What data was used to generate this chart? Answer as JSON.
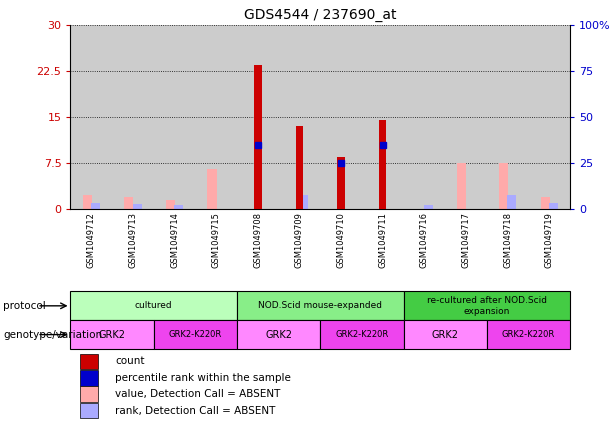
{
  "title": "GDS4544 / 237690_at",
  "samples": [
    "GSM1049712",
    "GSM1049713",
    "GSM1049714",
    "GSM1049715",
    "GSM1049708",
    "GSM1049709",
    "GSM1049710",
    "GSM1049711",
    "GSM1049716",
    "GSM1049717",
    "GSM1049718",
    "GSM1049719"
  ],
  "count_values": [
    0,
    0,
    0,
    0,
    23.5,
    13.5,
    8.5,
    14.5,
    0,
    0,
    0,
    0
  ],
  "percentile_rank_left": [
    0,
    0,
    0,
    0,
    10.5,
    0,
    7.5,
    10.5,
    0,
    0,
    0,
    0
  ],
  "absent_value": [
    2.2,
    2.0,
    1.5,
    6.5,
    0,
    0,
    0,
    0,
    0,
    7.5,
    7.5,
    2.0
  ],
  "absent_rank_left": [
    1.05,
    0.75,
    0.6,
    0,
    0,
    2.25,
    0,
    0,
    0.6,
    0,
    2.25,
    1.05
  ],
  "left_ylim": [
    0,
    30
  ],
  "right_ylim": [
    0,
    100
  ],
  "left_yticks": [
    0,
    7.5,
    15,
    22.5,
    30
  ],
  "right_yticks": [
    0,
    25,
    50,
    75,
    100
  ],
  "left_ytick_labels": [
    "0",
    "7.5",
    "15",
    "22.5",
    "30"
  ],
  "right_ytick_labels": [
    "0",
    "25",
    "50",
    "75",
    "100%"
  ],
  "protocols": [
    {
      "label": "cultured",
      "start": 0,
      "end": 4,
      "color": "#bbffbb"
    },
    {
      "label": "NOD.Scid mouse-expanded",
      "start": 4,
      "end": 8,
      "color": "#88ee88"
    },
    {
      "label": "re-cultured after NOD.Scid\nexpansion",
      "start": 8,
      "end": 12,
      "color": "#44cc44"
    }
  ],
  "genotypes": [
    {
      "label": "GRK2",
      "start": 0,
      "end": 2,
      "color": "#ff88ff"
    },
    {
      "label": "GRK2-K220R",
      "start": 2,
      "end": 4,
      "color": "#ee44ee"
    },
    {
      "label": "GRK2",
      "start": 4,
      "end": 6,
      "color": "#ff88ff"
    },
    {
      "label": "GRK2-K220R",
      "start": 6,
      "end": 8,
      "color": "#ee44ee"
    },
    {
      "label": "GRK2",
      "start": 8,
      "end": 10,
      "color": "#ff88ff"
    },
    {
      "label": "GRK2-K220R",
      "start": 10,
      "end": 12,
      "color": "#ee44ee"
    }
  ],
  "count_color": "#cc0000",
  "percentile_color": "#0000cc",
  "absent_value_color": "#ffaaaa",
  "absent_rank_color": "#aaaaff",
  "grid_color": "black",
  "left_axis_color": "#cc0000",
  "right_axis_color": "#0000cc",
  "bg_color": "#cccccc",
  "legend_items": [
    {
      "color": "#cc0000",
      "label": "count"
    },
    {
      "color": "#0000cc",
      "label": "percentile rank within the sample"
    },
    {
      "color": "#ffaaaa",
      "label": "value, Detection Call = ABSENT"
    },
    {
      "color": "#aaaaff",
      "label": "rank, Detection Call = ABSENT"
    }
  ]
}
